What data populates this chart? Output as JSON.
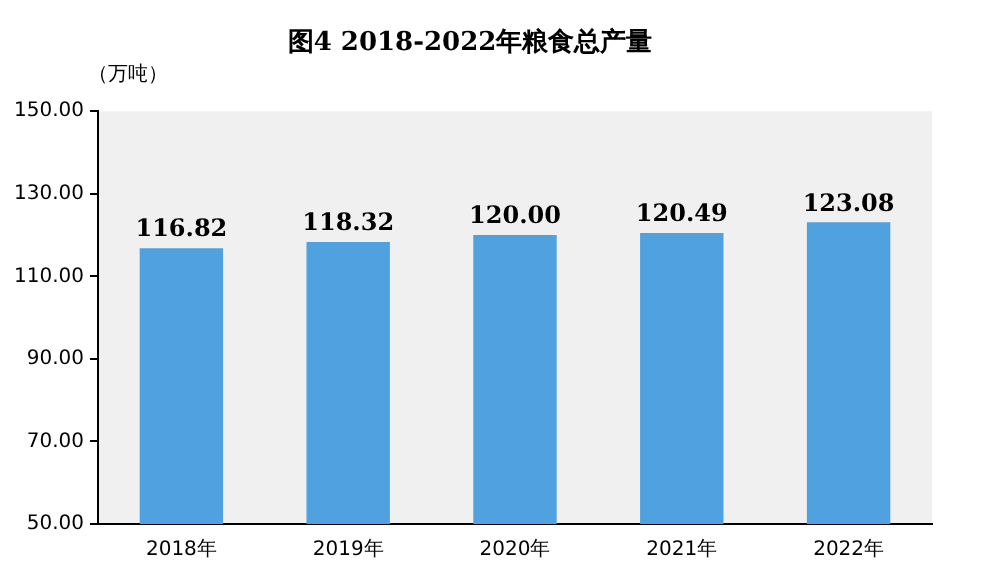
{
  "chart_data": {
    "type": "bar",
    "title": "图4 2018-2022年粮食总产量",
    "ylabel": "（万吨）",
    "categories": [
      "2018年",
      "2019年",
      "2020年",
      "2021年",
      "2022年"
    ],
    "values": [
      116.82,
      118.32,
      120.0,
      120.49,
      123.08
    ],
    "value_labels": [
      "116.82",
      "118.32",
      "120.00",
      "120.49",
      "123.08"
    ],
    "color": "#4fa1e0",
    "ylim": [
      50,
      150
    ],
    "yticks": [
      {
        "value": 50,
        "label": "50.00"
      },
      {
        "value": 70,
        "label": "70.00"
      },
      {
        "value": 90,
        "label": "90.00"
      },
      {
        "value": 110,
        "label": "110.00"
      },
      {
        "value": 130,
        "label": "130.00"
      },
      {
        "value": 150,
        "label": "150.00"
      }
    ],
    "grid": false,
    "legend": false
  }
}
